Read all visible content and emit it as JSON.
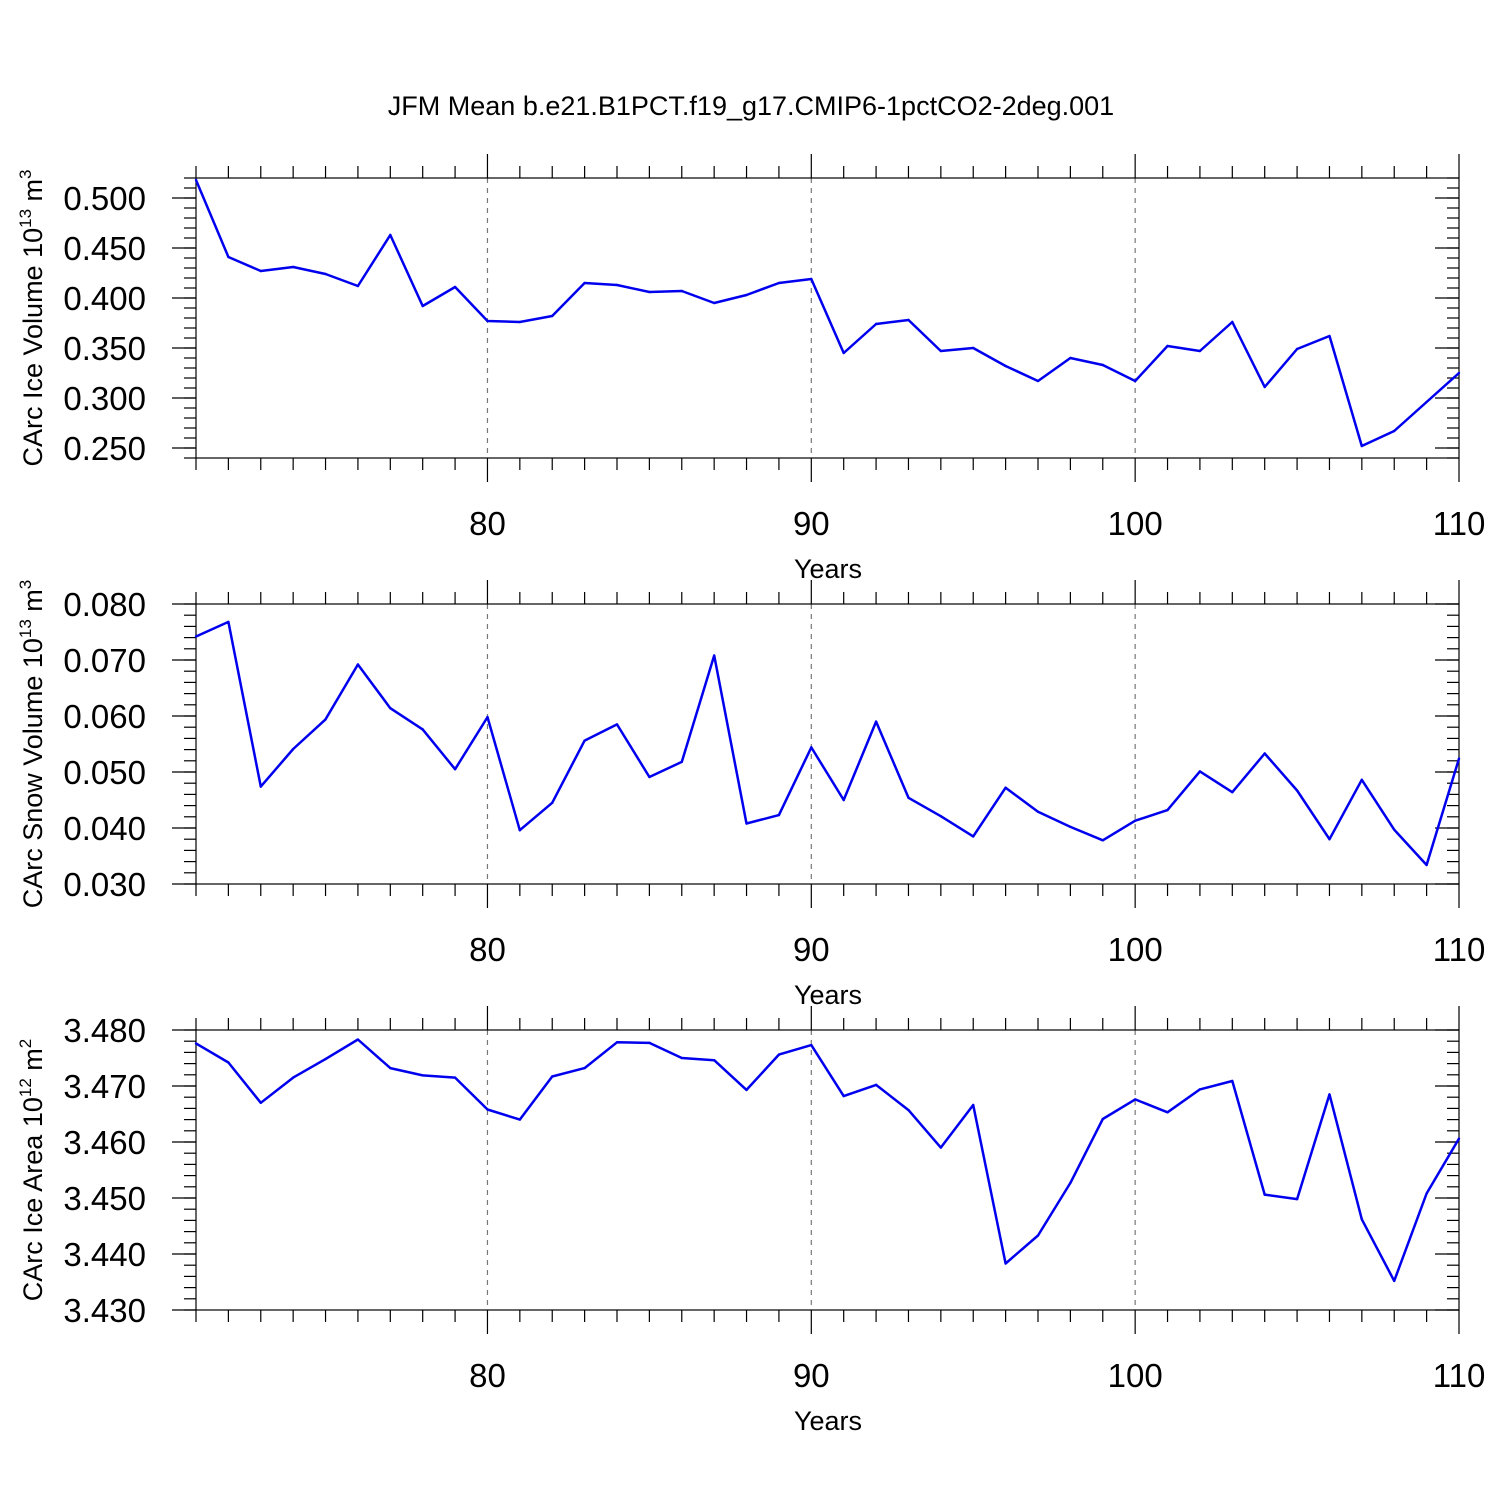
{
  "figure": {
    "title": "JFM Mean b.e21.B1PCT.f19_g17.CMIP6-1pctCO2-2deg.001"
  },
  "colors": {
    "line": "#0000ee",
    "grid": "#777777",
    "axes": "#000000"
  },
  "chart_data": [
    {
      "type": "line",
      "ylabel": {
        "prefix": "CArc Ice Volume 10",
        "exponent": "13",
        "unit": " m",
        "unit_exponent": "3"
      },
      "xlabel": "Years",
      "xlim": [
        71,
        110
      ],
      "ylim": [
        0.24,
        0.52
      ],
      "xticks": [
        80,
        90,
        100,
        110
      ],
      "xtick_labels": [
        "80",
        "90",
        "100",
        "110"
      ],
      "yticks": [
        0.25,
        0.3,
        0.35,
        0.4,
        0.45,
        0.5
      ],
      "ytick_labels": [
        "0.250",
        "0.300",
        "0.350",
        "0.400",
        "0.450",
        "0.500"
      ],
      "y_minor_step": 0.01,
      "grid": "vertical dashed at major x ticks",
      "x": [
        71,
        72,
        73,
        74,
        75,
        76,
        77,
        78,
        79,
        80,
        81,
        82,
        83,
        84,
        85,
        86,
        87,
        88,
        89,
        90,
        91,
        92,
        93,
        94,
        95,
        96,
        97,
        98,
        99,
        100,
        101,
        102,
        103,
        104,
        105,
        106,
        107,
        108,
        109,
        110
      ],
      "values": [
        0.518,
        0.441,
        0.427,
        0.431,
        0.424,
        0.412,
        0.463,
        0.392,
        0.411,
        0.377,
        0.376,
        0.382,
        0.415,
        0.413,
        0.406,
        0.407,
        0.395,
        0.403,
        0.415,
        0.419,
        0.345,
        0.374,
        0.378,
        0.347,
        0.35,
        0.332,
        0.317,
        0.34,
        0.333,
        0.317,
        0.352,
        0.347,
        0.376,
        0.311,
        0.349,
        0.362,
        0.252,
        0.267,
        0.296,
        0.325
      ]
    },
    {
      "type": "line",
      "ylabel": {
        "prefix": "CArc Snow Volume 10",
        "exponent": "13",
        "unit": " m",
        "unit_exponent": "3"
      },
      "xlabel": "Years",
      "xlim": [
        71,
        110
      ],
      "ylim": [
        0.03,
        0.08
      ],
      "xticks": [
        80,
        90,
        100,
        110
      ],
      "xtick_labels": [
        "80",
        "90",
        "100",
        "110"
      ],
      "yticks": [
        0.03,
        0.04,
        0.05,
        0.06,
        0.07,
        0.08
      ],
      "ytick_labels": [
        "0.030",
        "0.040",
        "0.050",
        "0.060",
        "0.070",
        "0.080"
      ],
      "y_minor_step": 0.002,
      "grid": "vertical dashed at major x ticks",
      "x": [
        71,
        72,
        73,
        74,
        75,
        76,
        77,
        78,
        79,
        80,
        81,
        82,
        83,
        84,
        85,
        86,
        87,
        88,
        89,
        90,
        91,
        92,
        93,
        94,
        95,
        96,
        97,
        98,
        99,
        100,
        101,
        102,
        103,
        104,
        105,
        106,
        107,
        108,
        109,
        110
      ],
      "values": [
        0.0742,
        0.0768,
        0.0474,
        0.0541,
        0.0594,
        0.0692,
        0.0614,
        0.0576,
        0.0505,
        0.0598,
        0.0396,
        0.0445,
        0.0556,
        0.0585,
        0.0491,
        0.0518,
        0.0708,
        0.0408,
        0.0423,
        0.0544,
        0.045,
        0.059,
        0.0454,
        0.0421,
        0.0385,
        0.0472,
        0.0429,
        0.0402,
        0.0378,
        0.0413,
        0.0432,
        0.0501,
        0.0464,
        0.0533,
        0.0467,
        0.038,
        0.0486,
        0.0397,
        0.0334,
        0.0524
      ]
    },
    {
      "type": "line",
      "ylabel": {
        "prefix": "CArc Ice Area 10",
        "exponent": "12",
        "unit": " m",
        "unit_exponent": "2"
      },
      "xlabel": "Years",
      "xlim": [
        71,
        110
      ],
      "ylim": [
        3.43,
        3.48
      ],
      "xticks": [
        80,
        90,
        100,
        110
      ],
      "xtick_labels": [
        "80",
        "90",
        "100",
        "110"
      ],
      "yticks": [
        3.43,
        3.44,
        3.45,
        3.46,
        3.47,
        3.48
      ],
      "ytick_labels": [
        "3.430",
        "3.440",
        "3.450",
        "3.460",
        "3.470",
        "3.480"
      ],
      "y_minor_step": 0.002,
      "grid": "vertical dashed at major x ticks",
      "x": [
        71,
        72,
        73,
        74,
        75,
        76,
        77,
        78,
        79,
        80,
        81,
        82,
        83,
        84,
        85,
        86,
        87,
        88,
        89,
        90,
        91,
        92,
        93,
        94,
        95,
        96,
        97,
        98,
        99,
        100,
        101,
        102,
        103,
        104,
        105,
        106,
        107,
        108,
        109,
        110
      ],
      "values": [
        3.4776,
        3.4742,
        3.467,
        3.4715,
        3.4748,
        3.4783,
        3.4732,
        3.4719,
        3.4715,
        3.4658,
        3.464,
        3.4717,
        3.4732,
        3.4778,
        3.4777,
        3.475,
        3.4746,
        3.4693,
        3.4756,
        3.4773,
        3.4682,
        3.4702,
        3.4657,
        3.459,
        3.4666,
        3.4383,
        3.4433,
        3.4527,
        3.4641,
        3.4676,
        3.4653,
        3.4694,
        3.4709,
        3.4506,
        3.4498,
        3.4685,
        3.4462,
        3.4352,
        3.4508,
        3.4606
      ]
    }
  ]
}
